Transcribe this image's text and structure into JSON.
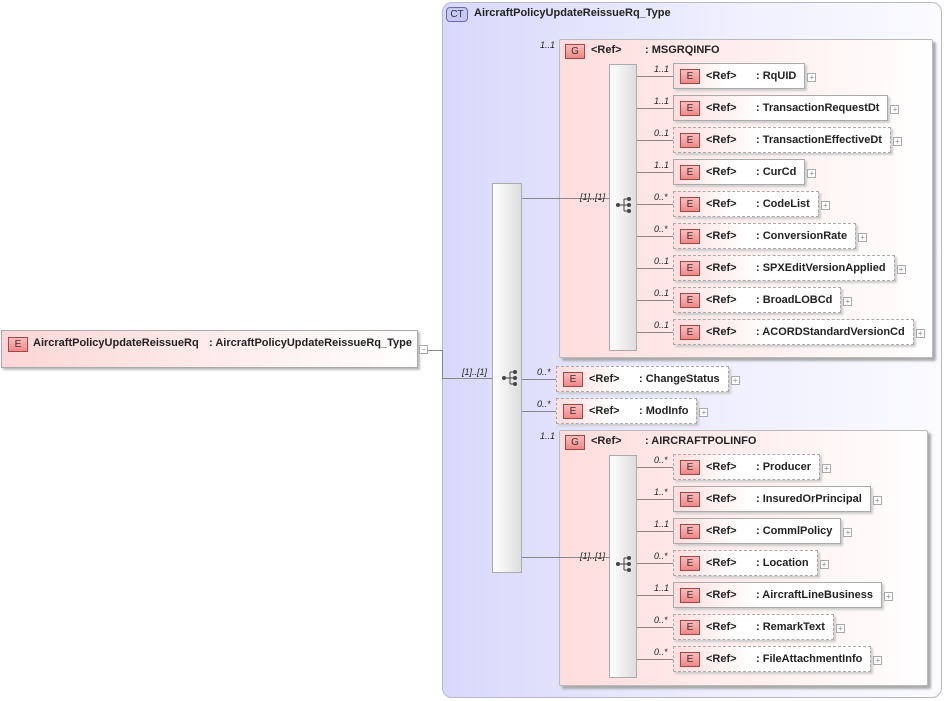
{
  "root": {
    "badge": "E",
    "name": "AircraftPolicyUpdateReissueRq",
    "type": ": AircraftPolicyUpdateReissueRq_Type",
    "collapse": "−"
  },
  "complex_type": {
    "badge": "CT",
    "title": "AircraftPolicyUpdateReissueRq_Type"
  },
  "main_sequence": {
    "cardinality": "[1]..[1]"
  },
  "groups": [
    {
      "badge": "G",
      "ref": "<Ref>",
      "name": ": MSGRQINFO",
      "cardinality": "1..1",
      "seq_cardinality": "[1]..[1]",
      "children": [
        {
          "card": "1..1",
          "ref": "<Ref>",
          "name": ": RqUID",
          "optional": false
        },
        {
          "card": "1..1",
          "ref": "<Ref>",
          "name": ": TransactionRequestDt",
          "optional": false
        },
        {
          "card": "0..1",
          "ref": "<Ref>",
          "name": ": TransactionEffectiveDt",
          "optional": true
        },
        {
          "card": "1..1",
          "ref": "<Ref>",
          "name": ": CurCd",
          "optional": false
        },
        {
          "card": "0..*",
          "ref": "<Ref>",
          "name": ": CodeList",
          "optional": true
        },
        {
          "card": "0..*",
          "ref": "<Ref>",
          "name": ": ConversionRate",
          "optional": true
        },
        {
          "card": "0..1",
          "ref": "<Ref>",
          "name": ": SPXEditVersionApplied",
          "optional": true
        },
        {
          "card": "0..1",
          "ref": "<Ref>",
          "name": ": BroadLOBCd",
          "optional": true
        },
        {
          "card": "0..1",
          "ref": "<Ref>",
          "name": ": ACORDStandardVersionCd",
          "optional": true
        }
      ]
    },
    {
      "badge": "G",
      "ref": "<Ref>",
      "name": ": AIRCRAFTPOLINFO",
      "cardinality": "1..1",
      "seq_cardinality": "[1]..[1]",
      "children": [
        {
          "card": "0..*",
          "ref": "<Ref>",
          "name": ": Producer",
          "optional": true
        },
        {
          "card": "1..*",
          "ref": "<Ref>",
          "name": ": InsuredOrPrincipal",
          "optional": false
        },
        {
          "card": "1..1",
          "ref": "<Ref>",
          "name": ": CommlPolicy",
          "optional": false
        },
        {
          "card": "0..*",
          "ref": "<Ref>",
          "name": ": Location",
          "optional": true
        },
        {
          "card": "1..1",
          "ref": "<Ref>",
          "name": ": AircraftLineBusiness",
          "optional": false
        },
        {
          "card": "0..*",
          "ref": "<Ref>",
          "name": ": RemarkText",
          "optional": true
        },
        {
          "card": "0..*",
          "ref": "<Ref>",
          "name": ": FileAttachmentInfo",
          "optional": true
        }
      ]
    }
  ],
  "direct_elements": [
    {
      "card": "0..*",
      "ref": "<Ref>",
      "name": ": ChangeStatus",
      "optional": true
    },
    {
      "card": "0..*",
      "ref": "<Ref>",
      "name": ": ModInfo",
      "optional": true
    }
  ],
  "element_badge": "E",
  "expand": "+"
}
